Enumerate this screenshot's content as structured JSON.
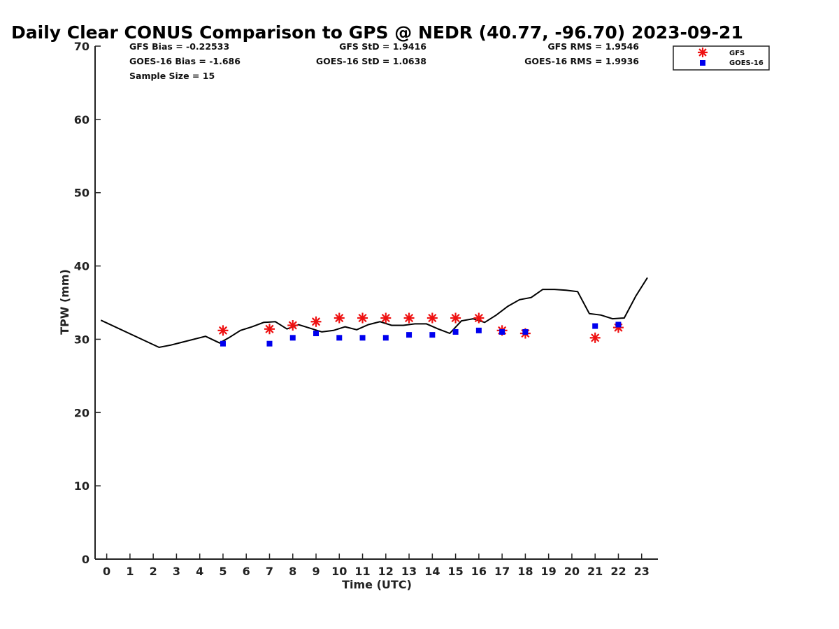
{
  "chart_data": {
    "type": "line",
    "title": "Daily Clear CONUS Comparison to GPS @ NEDR (40.77, -96.70) 2023-09-21",
    "xlabel": "Time (UTC)",
    "ylabel": "TPW (mm)",
    "xlim": [
      -0.5,
      23.7
    ],
    "ylim": [
      0,
      70
    ],
    "x_ticks": [
      0,
      1,
      2,
      3,
      4,
      5,
      6,
      7,
      8,
      9,
      10,
      11,
      12,
      13,
      14,
      15,
      16,
      17,
      18,
      19,
      20,
      21,
      22,
      23
    ],
    "y_ticks": [
      0,
      10,
      20,
      30,
      40,
      50,
      60,
      70
    ],
    "grid": false,
    "legend_position": "top-right",
    "stats": {
      "gfs_bias": "GFS Bias = -0.22533",
      "goes_bias": "GOES-16 Bias = -1.686",
      "sample_size": "Sample Size = 15",
      "gfs_std": "GFS StD = 1.9416",
      "goes_std": "GOES-16 StD = 1.0638",
      "gfs_rms": "GFS RMS = 1.9546",
      "goes_rms": "GOES-16 RMS = 1.9936"
    },
    "series": [
      {
        "kind": "line",
        "color": "#000000",
        "x": [
          -0.25,
          2.25,
          2.75,
          4.25,
          4.85,
          5.25,
          5.75,
          6.25,
          6.75,
          7.25,
          7.75,
          8.25,
          8.75,
          9.25,
          9.75,
          10.25,
          10.75,
          11.25,
          11.75,
          12.25,
          12.75,
          13.25,
          13.75,
          14.25,
          14.75,
          15.25,
          15.75,
          16.25,
          16.75,
          17.25,
          17.75,
          18.25,
          18.75,
          19.25,
          19.75,
          20.25,
          20.75,
          21.25,
          21.75,
          22.25,
          22.75,
          23.25
        ],
        "y": [
          32.6,
          28.9,
          29.2,
          30.4,
          29.5,
          30.2,
          31.2,
          31.7,
          32.3,
          32.4,
          31.4,
          32.0,
          31.5,
          31.0,
          31.2,
          31.7,
          31.3,
          32.0,
          32.4,
          31.9,
          31.9,
          32.1,
          32.1,
          31.4,
          30.8,
          32.5,
          32.8,
          32.3,
          33.3,
          34.5,
          35.4,
          35.7,
          36.8,
          36.8,
          36.7,
          36.5,
          33.5,
          33.3,
          32.8,
          32.9,
          35.9,
          38.4
        ]
      },
      {
        "name": "GFS",
        "kind": "star",
        "color": "#ee1111",
        "x": [
          5,
          7,
          8,
          9,
          10,
          11,
          12,
          13,
          14,
          15,
          16,
          17,
          18,
          21,
          22
        ],
        "y": [
          31.2,
          31.4,
          31.9,
          32.4,
          32.9,
          32.9,
          32.9,
          32.9,
          32.9,
          32.9,
          32.9,
          31.2,
          30.8,
          30.2,
          31.6
        ]
      },
      {
        "name": "GOES-16",
        "kind": "square",
        "color": "#0000ee",
        "x": [
          5,
          7,
          8,
          9,
          10,
          11,
          12,
          13,
          14,
          15,
          16,
          17,
          18,
          21,
          22
        ],
        "y": [
          29.4,
          29.4,
          30.2,
          30.8,
          30.2,
          30.2,
          30.2,
          30.6,
          30.6,
          31.0,
          31.2,
          31.0,
          31.0,
          31.8,
          32.0
        ]
      }
    ]
  }
}
